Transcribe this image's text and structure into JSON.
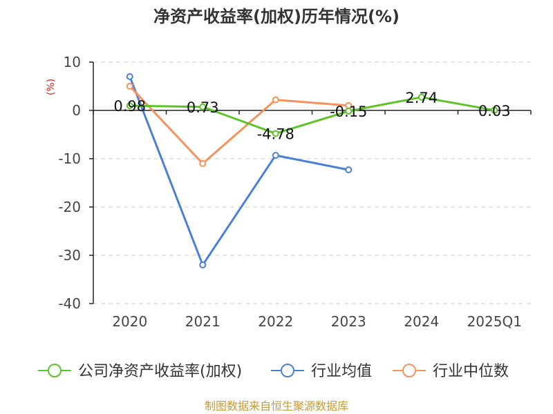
{
  "chart_data": {
    "type": "line",
    "title": "净资产收益率(加权)历年情况(%)",
    "ylabel": "(%)",
    "xlabel": "",
    "categories": [
      "2020",
      "2021",
      "2022",
      "2023",
      "2024",
      "2025Q1"
    ],
    "ylim": [
      -40,
      10
    ],
    "yticks": [
      10,
      0,
      -10,
      -20,
      -30,
      -40
    ],
    "grid": true,
    "legend_position": "bottom",
    "series": [
      {
        "name": "公司净资产收益率(加权)",
        "color": "#5bc424",
        "values": [
          0.98,
          0.73,
          -4.78,
          -0.15,
          2.74,
          0.03
        ],
        "labels": [
          "0.98",
          "0.73",
          "-4.78",
          "-0.15",
          "2.74",
          "0.03"
        ]
      },
      {
        "name": "行业均值",
        "color": "#4a7fd8",
        "values": [
          7.0,
          -32.0,
          -9.3,
          -12.3,
          null,
          null
        ]
      },
      {
        "name": "行业中位数",
        "color": "#f5925c",
        "values": [
          5.0,
          -11.0,
          2.2,
          1.0,
          null,
          null
        ]
      }
    ]
  },
  "source": "制图数据来自恒生聚源数据库"
}
